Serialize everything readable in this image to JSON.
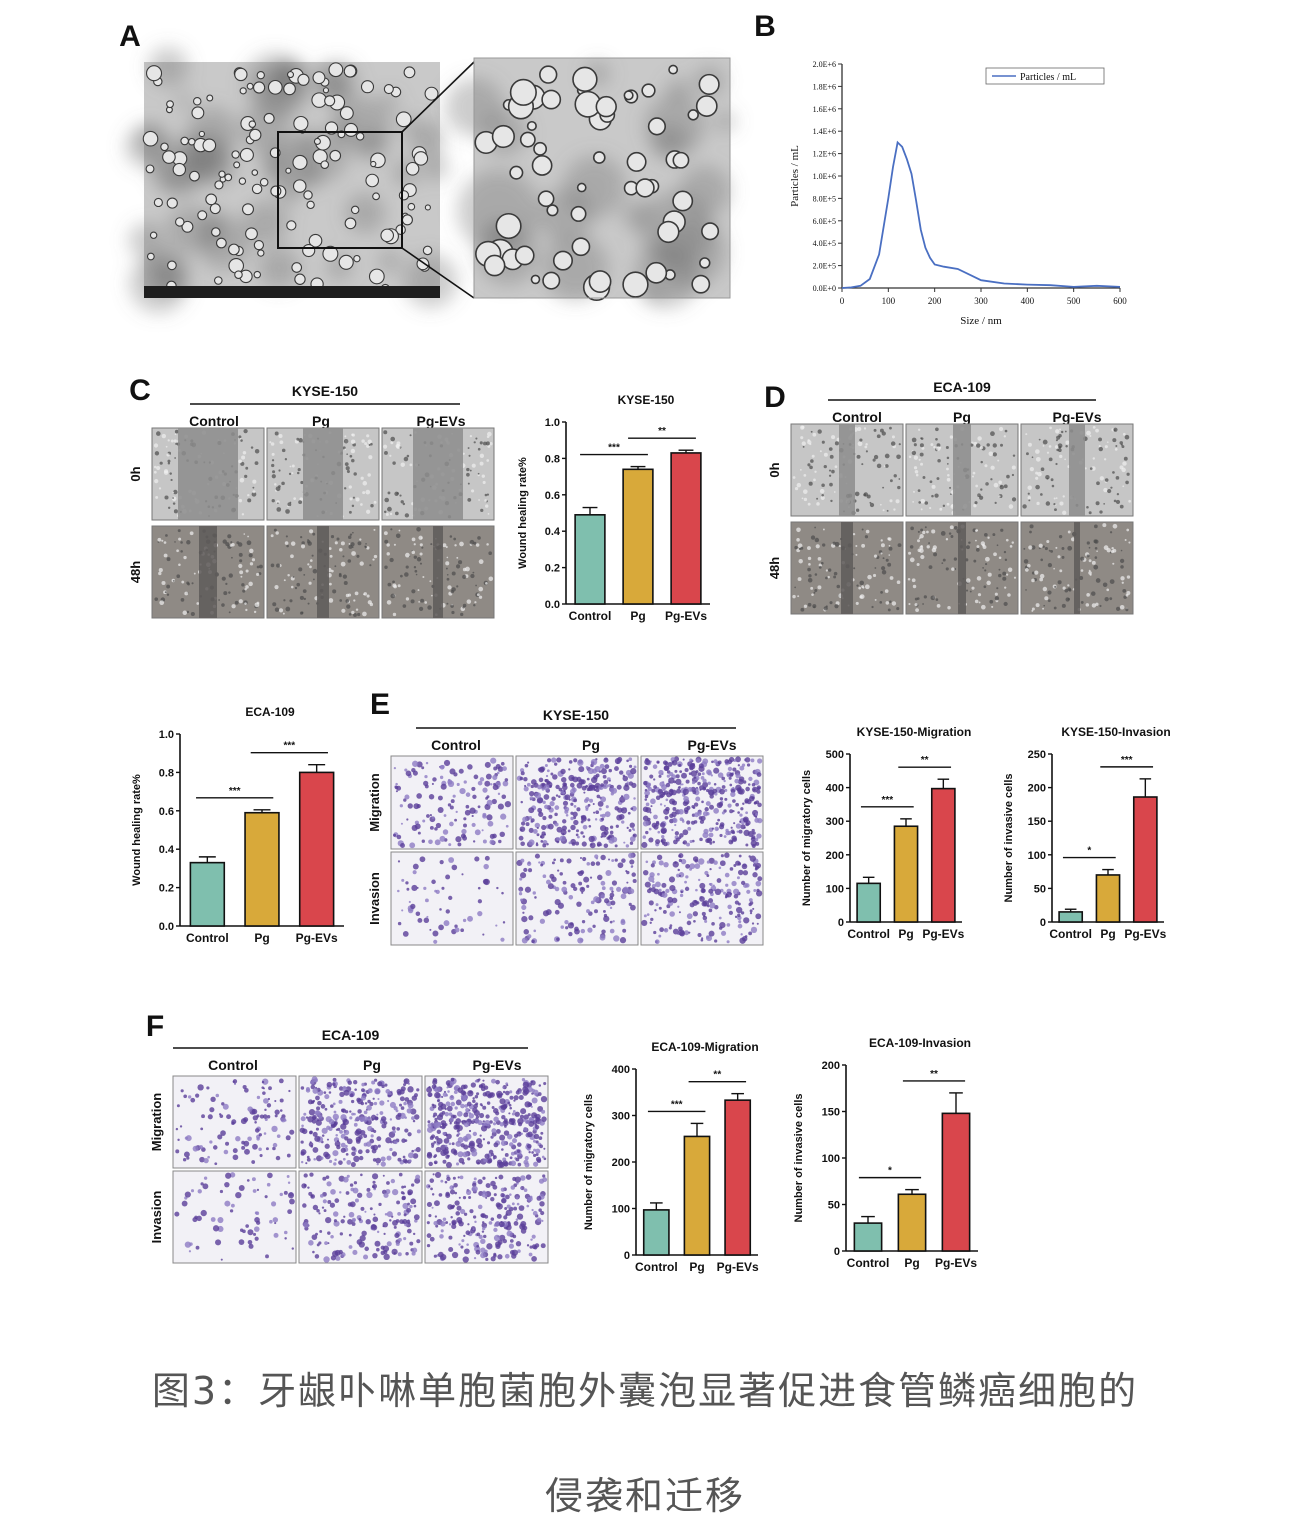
{
  "figure": {
    "panel_letters": [
      "A",
      "B",
      "C",
      "D",
      "E",
      "F"
    ],
    "caption_line1": "图3：牙龈卟啉单胞菌胞外囊泡显著促进食管鳞癌细胞的",
    "caption_line2": "侵袭和迁移"
  },
  "colors": {
    "control": "#7fbfae",
    "pg": "#d8a93a",
    "pg_evs": "#d9464c",
    "nta_line": "#4a6fc2"
  },
  "panels": {
    "C": {
      "cell_line": "KYSE-150",
      "groups": [
        "Control",
        "Pg",
        "Pg-EVs"
      ],
      "rows": [
        "0h",
        "48h"
      ]
    },
    "D": {
      "cell_line": "ECA-109",
      "groups": [
        "Control",
        "Pg",
        "Pg-EVs"
      ],
      "rows": [
        "0h",
        "48h"
      ]
    },
    "E": {
      "cell_line": "KYSE-150",
      "groups": [
        "Control",
        "Pg",
        "Pg-EVs"
      ],
      "rows": [
        "Migration",
        "Invasion"
      ]
    },
    "F": {
      "cell_line": "ECA-109",
      "groups": [
        "Control",
        "Pg",
        "Pg-EVs"
      ],
      "rows": [
        "Migration",
        "Invasion"
      ]
    }
  },
  "chart_data": [
    {
      "id": "B",
      "type": "line",
      "title": "",
      "xlabel": "Size / nm",
      "ylabel": "Particles / mL",
      "legend": "Particles / mL",
      "xlim": [
        0,
        600
      ],
      "ylim": [
        0,
        2000000
      ],
      "xticks": [
        0,
        100,
        200,
        300,
        400,
        500,
        600
      ],
      "yticks": [
        "0.0E+0",
        "2.0E+5",
        "4.0E+5",
        "6.0E+5",
        "8.0E+5",
        "1.0E+6",
        "1.2E+6",
        "1.4E+6",
        "1.6E+6",
        "1.8E+6",
        "2.0E+6"
      ],
      "x": [
        0,
        20,
        40,
        60,
        80,
        100,
        110,
        120,
        130,
        140,
        150,
        160,
        170,
        180,
        190,
        200,
        220,
        250,
        280,
        300,
        350,
        400,
        450,
        500,
        550,
        600
      ],
      "y": [
        0,
        5000,
        20000,
        80000,
        300000,
        800000,
        1080000,
        1300000,
        1260000,
        1150000,
        1020000,
        780000,
        520000,
        360000,
        270000,
        210000,
        190000,
        170000,
        110000,
        70000,
        40000,
        30000,
        25000,
        10000,
        20000,
        10000
      ]
    },
    {
      "id": "C",
      "type": "bar",
      "title": "KYSE-150",
      "categories": [
        "Control",
        "Pg",
        "Pg-EVs"
      ],
      "values": [
        0.49,
        0.74,
        0.83
      ],
      "errors": [
        0.04,
        0.015,
        0.015
      ],
      "ylabel": "Wound healing rate%",
      "ylim": [
        0,
        1.0
      ],
      "yticks": [
        "0.0",
        "0.2",
        "0.4",
        "0.6",
        "0.8",
        "1.0"
      ],
      "significance": [
        {
          "from": 0,
          "to": 1,
          "label": "***"
        },
        {
          "from": 1,
          "to": 2,
          "label": "**"
        }
      ]
    },
    {
      "id": "D-chart",
      "type": "bar",
      "title": "ECA-109",
      "categories": [
        "Control",
        "Pg",
        "Pg-EVs"
      ],
      "values": [
        0.33,
        0.59,
        0.8
      ],
      "errors": [
        0.03,
        0.015,
        0.04
      ],
      "ylabel": "Wound healing rate%",
      "ylim": [
        0,
        1.0
      ],
      "yticks": [
        "0.0",
        "0.2",
        "0.4",
        "0.6",
        "0.8",
        "1.0"
      ],
      "significance": [
        {
          "from": 0,
          "to": 1,
          "label": "***"
        },
        {
          "from": 1,
          "to": 2,
          "label": "***"
        }
      ]
    },
    {
      "id": "E-migration",
      "type": "bar",
      "title": "KYSE-150-Migration",
      "categories": [
        "Control",
        "Pg",
        "Pg-EVs"
      ],
      "values": [
        115,
        285,
        397
      ],
      "errors": [
        18,
        22,
        28
      ],
      "ylabel": "Number of migratory cells",
      "ylim": [
        0,
        500
      ],
      "yticks": [
        "0",
        "100",
        "200",
        "300",
        "400",
        "500"
      ],
      "significance": [
        {
          "from": 0,
          "to": 1,
          "label": "***"
        },
        {
          "from": 1,
          "to": 2,
          "label": "**"
        }
      ]
    },
    {
      "id": "E-invasion",
      "type": "bar",
      "title": "KYSE-150-Invasion",
      "categories": [
        "Control",
        "Pg",
        "Pg-EVs"
      ],
      "values": [
        15,
        70,
        186
      ],
      "errors": [
        4,
        8,
        27
      ],
      "ylabel": "Number of invasive cells",
      "ylim": [
        0,
        250
      ],
      "yticks": [
        "0",
        "50",
        "100",
        "150",
        "200",
        "250"
      ],
      "significance": [
        {
          "from": 0,
          "to": 1,
          "label": "*"
        },
        {
          "from": 1,
          "to": 2,
          "label": "***"
        }
      ]
    },
    {
      "id": "F-migration",
      "type": "bar",
      "title": "ECA-109-Migration",
      "categories": [
        "Control",
        "Pg",
        "Pg-EVs"
      ],
      "values": [
        97,
        255,
        333
      ],
      "errors": [
        15,
        28,
        14
      ],
      "ylabel": "Number of migratory cells",
      "ylim": [
        0,
        400
      ],
      "yticks": [
        "0",
        "100",
        "200",
        "300",
        "400"
      ],
      "significance": [
        {
          "from": 0,
          "to": 1,
          "label": "***"
        },
        {
          "from": 1,
          "to": 2,
          "label": "**"
        }
      ]
    },
    {
      "id": "F-invasion",
      "type": "bar",
      "title": "ECA-109-Invasion",
      "categories": [
        "Control",
        "Pg",
        "Pg-EVs"
      ],
      "values": [
        30,
        61,
        148
      ],
      "errors": [
        7,
        5,
        22
      ],
      "ylabel": "Number of invasive cells",
      "ylim": [
        0,
        200
      ],
      "yticks": [
        "0",
        "50",
        "100",
        "150",
        "200"
      ],
      "significance": [
        {
          "from": 0,
          "to": 1,
          "label": "*"
        },
        {
          "from": 1,
          "to": 2,
          "label": "**"
        }
      ]
    }
  ]
}
